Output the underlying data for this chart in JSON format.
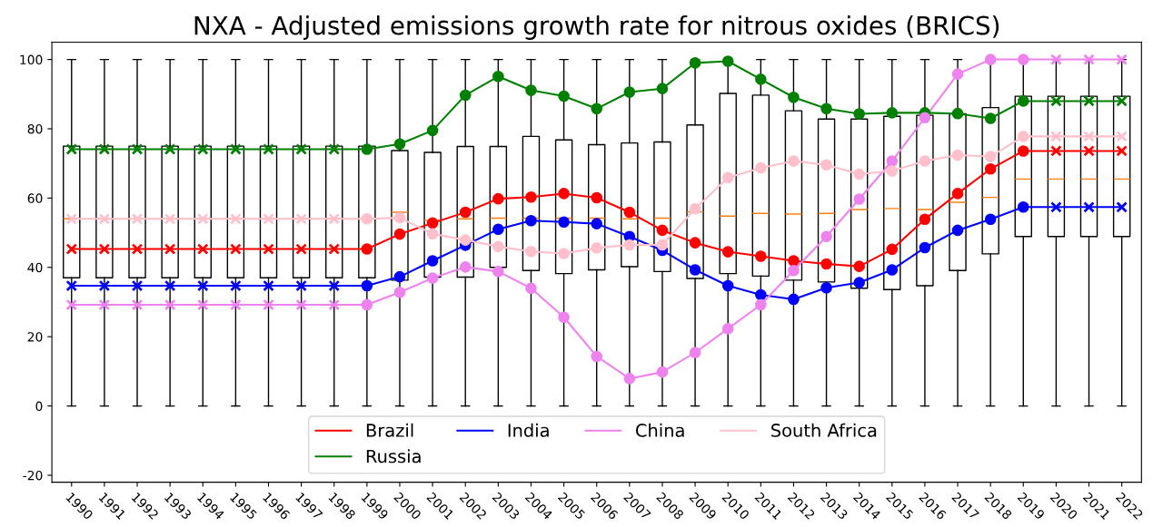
{
  "chart_data": {
    "type": "box",
    "title": "NXA - Adjusted emissions growth rate for nitrous oxides (BRICS)",
    "categories": [
      "1990",
      "1991",
      "1992",
      "1993",
      "1994",
      "1995",
      "1996",
      "1997",
      "1998",
      "1999",
      "2000",
      "2001",
      "2002",
      "2003",
      "2004",
      "2005",
      "2006",
      "2007",
      "2008",
      "2009",
      "2010",
      "2011",
      "2012",
      "2013",
      "2014",
      "2015",
      "2016",
      "2017",
      "2018",
      "2019",
      "2020",
      "2021",
      "2022"
    ],
    "boxes": [
      {
        "low": 0,
        "q1": 37,
        "median": 54,
        "q3": 75,
        "high": 100
      },
      {
        "low": 0,
        "q1": 37,
        "median": 54,
        "q3": 75,
        "high": 100
      },
      {
        "low": 0,
        "q1": 37,
        "median": 54,
        "q3": 75,
        "high": 100
      },
      {
        "low": 0,
        "q1": 37,
        "median": 54,
        "q3": 75,
        "high": 100
      },
      {
        "low": 0,
        "q1": 37,
        "median": 54,
        "q3": 75,
        "high": 100
      },
      {
        "low": 0,
        "q1": 37,
        "median": 54,
        "q3": 75,
        "high": 100
      },
      {
        "low": 0,
        "q1": 37,
        "median": 54,
        "q3": 75,
        "high": 100
      },
      {
        "low": 0,
        "q1": 37,
        "median": 54,
        "q3": 75,
        "high": 100
      },
      {
        "low": 0,
        "q1": 37,
        "median": 54,
        "q3": 75,
        "high": 100
      },
      {
        "low": 0,
        "q1": 37,
        "median": 54,
        "q3": 75,
        "high": 100
      },
      {
        "low": 0,
        "q1": 36.3,
        "median": 55.9,
        "q3": 73.7,
        "high": 100
      },
      {
        "low": 0,
        "q1": 37.2,
        "median": 53.6,
        "q3": 73.2,
        "high": 100
      },
      {
        "low": 0,
        "q1": 37.2,
        "median": 54.0,
        "q3": 74.9,
        "high": 100
      },
      {
        "low": 0,
        "q1": 40.0,
        "median": 54.2,
        "q3": 74.9,
        "high": 100
      },
      {
        "low": 0,
        "q1": 39.1,
        "median": 54.2,
        "q3": 77.8,
        "high": 100
      },
      {
        "low": 0,
        "q1": 38.2,
        "median": 54.2,
        "q3": 76.8,
        "high": 100
      },
      {
        "low": 0,
        "q1": 39.3,
        "median": 54.2,
        "q3": 75.4,
        "high": 100
      },
      {
        "low": 0,
        "q1": 40.2,
        "median": 54.0,
        "q3": 75.9,
        "high": 100
      },
      {
        "low": 0,
        "q1": 38.8,
        "median": 54.2,
        "q3": 76.2,
        "high": 100
      },
      {
        "low": 0,
        "q1": 36.8,
        "median": 56.0,
        "q3": 81.1,
        "high": 100
      },
      {
        "low": 0,
        "q1": 38.2,
        "median": 54.8,
        "q3": 90.2,
        "high": 100
      },
      {
        "low": 0,
        "q1": 37.5,
        "median": 55.6,
        "q3": 89.7,
        "high": 100
      },
      {
        "low": 0,
        "q1": 36.3,
        "median": 55.4,
        "q3": 85.2,
        "high": 100
      },
      {
        "low": 0,
        "q1": 35.8,
        "median": 55.6,
        "q3": 82.8,
        "high": 100
      },
      {
        "low": 0,
        "q1": 34.0,
        "median": 56.7,
        "q3": 82.8,
        "high": 100
      },
      {
        "low": 0,
        "q1": 33.6,
        "median": 57.0,
        "q3": 83.6,
        "high": 100
      },
      {
        "low": 0,
        "q1": 34.7,
        "median": 56.7,
        "q3": 83.9,
        "high": 100
      },
      {
        "low": 0,
        "q1": 39.1,
        "median": 58.8,
        "q3": 84.3,
        "high": 100
      },
      {
        "low": 0,
        "q1": 43.9,
        "median": 60.2,
        "q3": 86.1,
        "high": 100
      },
      {
        "low": 0,
        "q1": 48.9,
        "median": 65.5,
        "q3": 89.4,
        "high": 100
      },
      {
        "low": 0,
        "q1": 48.9,
        "median": 65.5,
        "q3": 89.4,
        "high": 100
      },
      {
        "low": 0,
        "q1": 48.9,
        "median": 65.5,
        "q3": 89.4,
        "high": 100
      },
      {
        "low": 0,
        "q1": 48.9,
        "median": 65.5,
        "q3": 89.4,
        "high": 100
      }
    ],
    "series": [
      {
        "name": "Brazil",
        "type": "line",
        "color": "#ff0000",
        "values": [
          45.3,
          45.3,
          45.3,
          45.3,
          45.3,
          45.3,
          45.3,
          45.3,
          45.3,
          45.3,
          49.6,
          52.8,
          55.9,
          59.8,
          60.3,
          61.3,
          60.1,
          55.9,
          50.7,
          47.1,
          44.5,
          43.2,
          41.9,
          41.0,
          40.3,
          45.2,
          53.9,
          61.3,
          68.4,
          73.6,
          73.6,
          73.6,
          73.6
        ]
      },
      {
        "name": "Russia",
        "type": "line",
        "color": "#008000",
        "values": [
          74.1,
          74.1,
          74.1,
          74.1,
          74.1,
          74.1,
          74.1,
          74.1,
          74.1,
          74.1,
          75.6,
          79.5,
          89.7,
          95.1,
          91.1,
          89.4,
          85.8,
          90.6,
          91.6,
          99.0,
          99.5,
          94.3,
          89.1,
          85.8,
          84.3,
          84.6,
          84.6,
          84.4,
          83.0,
          88.0,
          88.0,
          88.0,
          88.0
        ]
      },
      {
        "name": "India",
        "type": "line",
        "color": "#0000ff",
        "values": [
          34.7,
          34.7,
          34.7,
          34.7,
          34.7,
          34.7,
          34.7,
          34.7,
          34.7,
          34.7,
          37.3,
          41.9,
          46.4,
          51.0,
          53.5,
          53.1,
          52.6,
          48.9,
          44.9,
          39.3,
          34.7,
          32.1,
          30.8,
          34.1,
          35.6,
          39.3,
          45.7,
          50.7,
          53.9,
          57.4,
          57.4,
          57.4,
          57.4
        ]
      },
      {
        "name": "China",
        "type": "line",
        "color": "#ee82ee",
        "values": [
          29.2,
          29.2,
          29.2,
          29.2,
          29.2,
          29.2,
          29.2,
          29.2,
          29.2,
          29.2,
          32.8,
          36.9,
          40.1,
          38.8,
          34.0,
          25.6,
          14.3,
          7.9,
          9.8,
          15.4,
          22.3,
          29.2,
          39.1,
          48.9,
          59.7,
          70.7,
          83.2,
          95.8,
          100,
          100,
          100,
          100,
          100
        ]
      },
      {
        "name": "South Africa",
        "type": "line",
        "color": "#ffc0cb",
        "values": [
          54.0,
          54.0,
          54.0,
          54.0,
          54.0,
          54.0,
          54.0,
          54.0,
          54.0,
          54.0,
          54.3,
          49.7,
          47.9,
          46.0,
          44.6,
          44.0,
          45.6,
          46.5,
          46.5,
          56.9,
          65.9,
          68.7,
          70.7,
          69.6,
          66.9,
          67.8,
          70.7,
          72.4,
          72.0,
          77.8,
          77.8,
          77.8,
          77.8
        ]
      },
      {
        "type": "scatter",
        "marker": "cross",
        "color": "#ff0000",
        "values": [
          45.3,
          45.3,
          45.3,
          45.3,
          45.3,
          45.3,
          45.3,
          45.3,
          45.3,
          null,
          null,
          null,
          null,
          null,
          null,
          null,
          null,
          null,
          null,
          null,
          null,
          null,
          null,
          null,
          null,
          null,
          null,
          null,
          null,
          null,
          73.6,
          73.6,
          73.6
        ]
      },
      {
        "type": "scatter",
        "marker": "circle",
        "color": "#ff0000",
        "values": [
          null,
          null,
          null,
          null,
          null,
          null,
          null,
          null,
          null,
          45.3,
          49.6,
          52.8,
          55.9,
          59.8,
          60.3,
          61.3,
          60.1,
          55.9,
          50.7,
          47.1,
          44.5,
          43.2,
          41.9,
          41.0,
          40.3,
          45.2,
          53.9,
          61.3,
          68.4,
          73.6,
          null,
          null,
          null
        ]
      },
      {
        "type": "scatter",
        "marker": "cross",
        "color": "#008000",
        "values": [
          74.1,
          74.1,
          74.1,
          74.1,
          74.1,
          74.1,
          74.1,
          74.1,
          74.1,
          null,
          null,
          null,
          null,
          null,
          null,
          null,
          null,
          null,
          null,
          null,
          null,
          null,
          null,
          null,
          null,
          null,
          null,
          null,
          null,
          null,
          88.0,
          88.0,
          88.0
        ]
      },
      {
        "type": "scatter",
        "marker": "circle",
        "color": "#008000",
        "values": [
          null,
          null,
          null,
          null,
          null,
          null,
          null,
          null,
          null,
          74.1,
          75.6,
          79.5,
          89.7,
          95.1,
          91.1,
          89.4,
          85.8,
          90.6,
          91.6,
          99.0,
          99.5,
          94.3,
          89.1,
          85.8,
          84.3,
          84.6,
          84.6,
          84.4,
          83.0,
          88.0,
          null,
          null,
          null
        ]
      },
      {
        "type": "scatter",
        "marker": "cross",
        "color": "#0000ff",
        "values": [
          34.7,
          34.7,
          34.7,
          34.7,
          34.7,
          34.7,
          34.7,
          34.7,
          34.7,
          null,
          null,
          null,
          null,
          null,
          null,
          null,
          null,
          null,
          null,
          null,
          null,
          null,
          null,
          null,
          null,
          null,
          null,
          null,
          null,
          null,
          57.4,
          57.4,
          57.4
        ]
      },
      {
        "type": "scatter",
        "marker": "circle",
        "color": "#0000ff",
        "values": [
          null,
          null,
          null,
          null,
          null,
          null,
          null,
          null,
          null,
          34.7,
          37.3,
          41.9,
          46.4,
          51.0,
          53.5,
          53.1,
          52.6,
          48.9,
          44.9,
          39.3,
          34.7,
          32.1,
          30.8,
          34.1,
          35.6,
          39.3,
          45.7,
          50.7,
          53.9,
          57.4,
          null,
          null,
          null
        ]
      },
      {
        "type": "scatter",
        "marker": "cross",
        "color": "#ee82ee",
        "values": [
          29.2,
          29.2,
          29.2,
          29.2,
          29.2,
          29.2,
          29.2,
          29.2,
          29.2,
          null,
          null,
          null,
          null,
          null,
          null,
          null,
          null,
          null,
          null,
          null,
          null,
          null,
          null,
          null,
          null,
          null,
          null,
          null,
          null,
          null,
          100,
          100,
          100
        ]
      },
      {
        "type": "scatter",
        "marker": "circle",
        "color": "#ee82ee",
        "values": [
          null,
          null,
          null,
          null,
          null,
          null,
          null,
          null,
          null,
          29.2,
          32.8,
          36.9,
          40.1,
          38.8,
          34.0,
          25.6,
          14.3,
          7.9,
          9.8,
          15.4,
          22.3,
          29.2,
          39.1,
          48.9,
          59.7,
          70.7,
          83.2,
          95.8,
          100,
          100,
          null,
          null,
          null
        ]
      },
      {
        "type": "scatter",
        "marker": "cross",
        "color": "#ffc0cb",
        "values": [
          54.0,
          54.0,
          54.0,
          54.0,
          54.0,
          54.0,
          54.0,
          54.0,
          54.0,
          null,
          null,
          null,
          null,
          null,
          null,
          null,
          null,
          null,
          null,
          null,
          null,
          null,
          null,
          null,
          null,
          null,
          null,
          null,
          null,
          null,
          77.8,
          77.8,
          77.8
        ]
      },
      {
        "type": "scatter",
        "marker": "circle",
        "color": "#ffc0cb",
        "values": [
          null,
          null,
          null,
          null,
          null,
          null,
          null,
          null,
          null,
          54.0,
          54.3,
          49.7,
          47.9,
          46.0,
          44.6,
          44.0,
          45.6,
          46.5,
          46.5,
          56.9,
          65.9,
          68.7,
          70.7,
          69.6,
          66.9,
          67.8,
          70.7,
          72.4,
          72.0,
          77.8,
          null,
          null,
          null
        ]
      }
    ],
    "ylim": [
      -22,
      105
    ],
    "yticks": [
      -20,
      0,
      20,
      40,
      60,
      80,
      100
    ],
    "grid": false,
    "legend": "bottom"
  }
}
